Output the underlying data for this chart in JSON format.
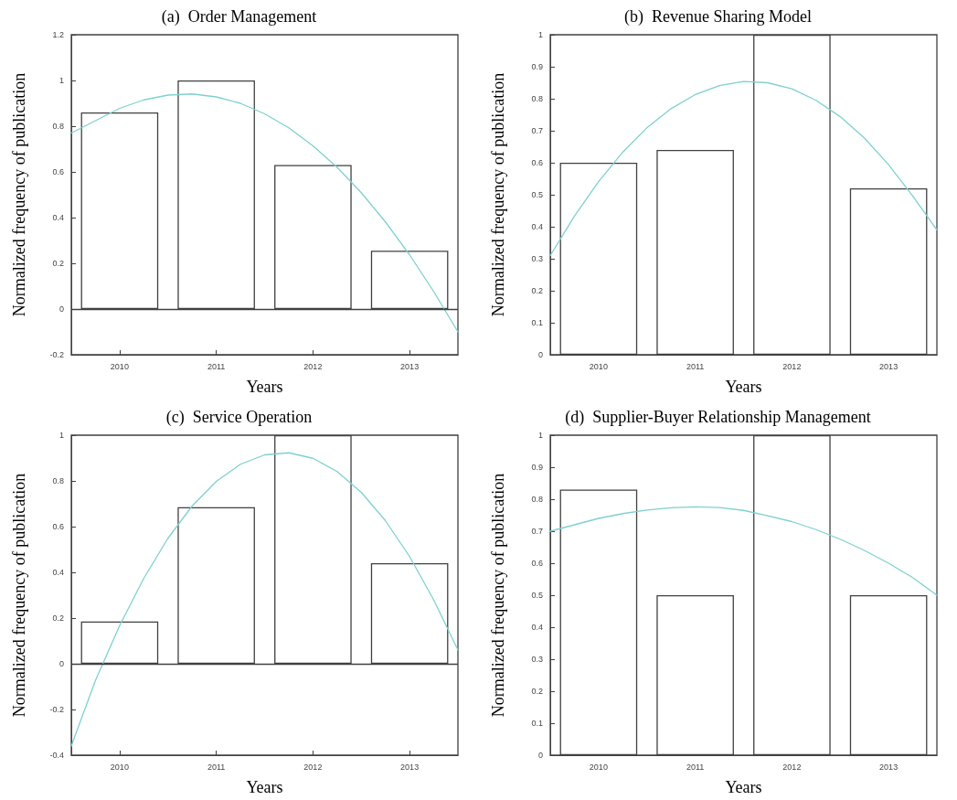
{
  "chart_data": [
    {
      "type": "bar",
      "title": "(a)  Order Management",
      "xlabel": "Years",
      "ylabel": "Normalized frequency of publication",
      "x": [
        2010,
        2011,
        2012,
        2013
      ],
      "xlim": [
        2009.5,
        2013.5
      ],
      "xticks": [
        2010,
        2011,
        2012,
        2013
      ],
      "ylim": [
        -0.2,
        1.2
      ],
      "yticks": [
        -0.2,
        0,
        0.2,
        0.4,
        0.6,
        0.8,
        1,
        1.2
      ],
      "grid": false,
      "ref_lines": [
        {
          "axis": "y",
          "value": 0,
          "color": "#404040"
        }
      ],
      "series": [
        {
          "color": "#404040",
          "values": [
            0.86,
            1,
            0.63,
            0.255
          ]
        },
        {
          "type": "line",
          "color": "#7fd0d0",
          "marker": "none",
          "line_style": "solid",
          "x": [
            2009.5,
            2009.75,
            2010,
            2010.25,
            2010.5,
            2010.75,
            2011,
            2011.25,
            2011.5,
            2011.75,
            2012,
            2012.25,
            2012.5,
            2012.75,
            2013,
            2013.25,
            2013.5
          ],
          "values": [
            0.77,
            0.824,
            0.878,
            0.915,
            0.936,
            0.941,
            0.928,
            0.9,
            0.854,
            0.793,
            0.714,
            0.62,
            0.509,
            0.381,
            0.237,
            0.076,
            -0.1
          ]
        }
      ]
    },
    {
      "type": "bar",
      "title": "(b)  Revenue Sharing Model",
      "xlabel": "Years",
      "ylabel": "Normalized frequency of publication",
      "x": [
        2010,
        2011,
        2012,
        2013
      ],
      "xlim": [
        2009.5,
        2013.5
      ],
      "xticks": [
        2010,
        2011,
        2012,
        2013
      ],
      "ylim": [
        0,
        1
      ],
      "yticks": [
        0,
        0.1,
        0.2,
        0.3,
        0.4,
        0.5,
        0.6,
        0.7,
        0.8,
        0.9,
        1
      ],
      "grid": false,
      "series": [
        {
          "color": "#404040",
          "values": [
            0.6,
            0.64,
            1,
            0.52
          ]
        },
        {
          "type": "line",
          "color": "#7fd0d0",
          "marker": "none",
          "line_style": "solid",
          "x": [
            2009.5,
            2009.75,
            2010,
            2010.25,
            2010.5,
            2010.75,
            2011,
            2011.25,
            2011.5,
            2011.75,
            2012,
            2012.25,
            2012.5,
            2012.75,
            2013,
            2013.25,
            2013.5
          ],
          "values": [
            0.31,
            0.433,
            0.541,
            0.633,
            0.709,
            0.769,
            0.813,
            0.841,
            0.854,
            0.85,
            0.831,
            0.795,
            0.744,
            0.677,
            0.594,
            0.496,
            0.39
          ]
        }
      ]
    },
    {
      "type": "bar",
      "title": "(c)  Service Operation",
      "xlabel": "Years",
      "ylabel": "Normalized frequency of publication",
      "x": [
        2010,
        2011,
        2012,
        2013
      ],
      "xlim": [
        2009.5,
        2013.5
      ],
      "xticks": [
        2010,
        2011,
        2012,
        2013
      ],
      "ylim": [
        -0.4,
        1
      ],
      "yticks": [
        -0.4,
        -0.2,
        0,
        0.2,
        0.4,
        0.6,
        0.8,
        1
      ],
      "grid": false,
      "ref_lines": [
        {
          "axis": "y",
          "value": 0,
          "color": "#404040"
        }
      ],
      "series": [
        {
          "color": "#404040",
          "values": [
            0.185,
            0.685,
            1,
            0.44
          ]
        },
        {
          "type": "line",
          "color": "#7fd0d0",
          "marker": "none",
          "line_style": "solid",
          "x": [
            2009.5,
            2009.75,
            2010,
            2010.25,
            2010.5,
            2010.75,
            2011,
            2011.25,
            2011.5,
            2011.75,
            2012,
            2012.25,
            2012.5,
            2012.75,
            2013,
            2013.25,
            2013.5
          ],
          "values": [
            -0.36,
            -0.073,
            0.167,
            0.374,
            0.549,
            0.69,
            0.798,
            0.873,
            0.914,
            0.923,
            0.899,
            0.841,
            0.75,
            0.626,
            0.469,
            0.279,
            0.06
          ]
        }
      ]
    },
    {
      "type": "bar",
      "title": "(d)  Supplier-Buyer Relationship Management",
      "xlabel": "Years",
      "ylabel": "Normalized frequency of publication",
      "x": [
        2010,
        2011,
        2012,
        2013
      ],
      "xlim": [
        2009.5,
        2013.5
      ],
      "xticks": [
        2010,
        2011,
        2012,
        2013
      ],
      "ylim": [
        0,
        1
      ],
      "yticks": [
        0,
        0.1,
        0.2,
        0.3,
        0.4,
        0.5,
        0.6,
        0.7,
        0.8,
        0.9,
        1
      ],
      "grid": false,
      "series": [
        {
          "color": "#404040",
          "values": [
            0.83,
            0.5,
            1,
            0.5
          ]
        },
        {
          "type": "line",
          "color": "#7fd0d0",
          "marker": "none",
          "line_style": "solid",
          "x": [
            2009.5,
            2009.75,
            2010,
            2010.25,
            2010.5,
            2010.75,
            2011,
            2011.25,
            2011.5,
            2011.75,
            2012,
            2012.25,
            2012.5,
            2012.75,
            2013,
            2013.25,
            2013.5
          ],
          "values": [
            0.7,
            0.72,
            0.74,
            0.755,
            0.766,
            0.773,
            0.776,
            0.774,
            0.765,
            0.748,
            0.73,
            0.705,
            0.675,
            0.64,
            0.6,
            0.555,
            0.5
          ]
        }
      ]
    }
  ]
}
